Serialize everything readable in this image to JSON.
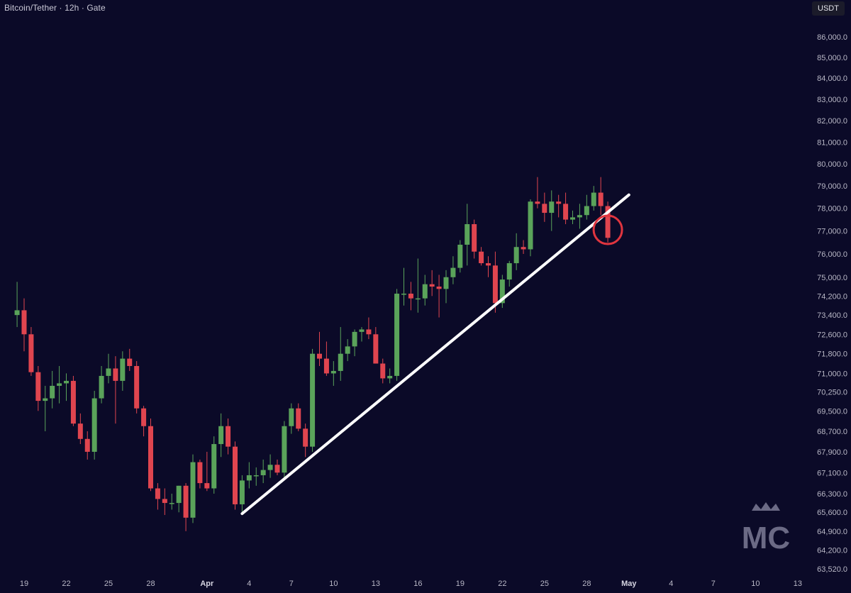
{
  "header": {
    "title": "Bitcoin/Tether · 12h · Gate",
    "currency": "USDT"
  },
  "colors": {
    "background": "#0b0a28",
    "bull": "#5aa35a",
    "bear": "#e0454f",
    "trendline": "#ffffff",
    "highlight_circle": "#e0353f",
    "axis_text": "#b9b8c6"
  },
  "watermark": {
    "text": "MC",
    "icon": "crown-logo-icon"
  },
  "chart_data": {
    "type": "candlestick",
    "interval": "12h",
    "y_scale": "log",
    "ylim": [
      63200,
      87200
    ],
    "y_ticks": [
      "86,000.0",
      "85,000.0",
      "84,000.0",
      "83,000.0",
      "82,000.0",
      "81,000.0",
      "80,000.0",
      "79,000.0",
      "78,000.0",
      "77,000.0",
      "76,000.0",
      "75,000.0",
      "74,200.0",
      "73,400.0",
      "72,600.0",
      "71,800.0",
      "71,000.0",
      "70,250.0",
      "69,500.0",
      "68,700.0",
      "67,900.0",
      "67,100.0",
      "66,300.0",
      "65,600.0",
      "64,900.0",
      "64,200.0",
      "63,520.0"
    ],
    "x_ticks": [
      "19",
      "22",
      "25",
      "28",
      "Apr",
      "4",
      "7",
      "10",
      "13",
      "16",
      "19",
      "22",
      "25",
      "28",
      "May",
      "4",
      "7",
      "10",
      "13"
    ],
    "x_tick_dates": [
      "2024-03-19",
      "2024-03-22",
      "2024-03-25",
      "2024-03-28",
      "2024-04-01",
      "2024-04-04",
      "2024-04-07",
      "2024-04-10",
      "2024-04-13",
      "2024-04-16",
      "2024-04-19",
      "2024-04-22",
      "2024-04-25",
      "2024-04-28",
      "2024-05-01",
      "2024-05-04",
      "2024-05-07",
      "2024-05-10",
      "2024-05-13"
    ],
    "candles": [
      {
        "t": "2024-03-18 12:00",
        "o": 73400,
        "h": 74800,
        "l": 72900,
        "c": 73600
      },
      {
        "t": "2024-03-19 00:00",
        "o": 73600,
        "h": 74100,
        "l": 71900,
        "c": 72600
      },
      {
        "t": "2024-03-19 12:00",
        "o": 72600,
        "h": 72900,
        "l": 70900,
        "c": 71050
      },
      {
        "t": "2024-03-20 00:00",
        "o": 71050,
        "h": 71300,
        "l": 69500,
        "c": 69900
      },
      {
        "t": "2024-03-20 12:00",
        "o": 69900,
        "h": 70500,
        "l": 68700,
        "c": 70000
      },
      {
        "t": "2024-03-21 00:00",
        "o": 70000,
        "h": 71100,
        "l": 69600,
        "c": 70500
      },
      {
        "t": "2024-03-21 12:00",
        "o": 70500,
        "h": 71300,
        "l": 69800,
        "c": 70600
      },
      {
        "t": "2024-03-22 00:00",
        "o": 70600,
        "h": 71000,
        "l": 69900,
        "c": 70700
      },
      {
        "t": "2024-03-22 12:00",
        "o": 70700,
        "h": 70900,
        "l": 68900,
        "c": 69000
      },
      {
        "t": "2024-03-23 00:00",
        "o": 69000,
        "h": 69400,
        "l": 68200,
        "c": 68400
      },
      {
        "t": "2024-03-23 12:00",
        "o": 68400,
        "h": 68700,
        "l": 67600,
        "c": 67900
      },
      {
        "t": "2024-03-24 00:00",
        "o": 67900,
        "h": 70300,
        "l": 67600,
        "c": 70000
      },
      {
        "t": "2024-03-24 12:00",
        "o": 70000,
        "h": 71300,
        "l": 69800,
        "c": 70900
      },
      {
        "t": "2024-03-25 00:00",
        "o": 70900,
        "h": 71800,
        "l": 70600,
        "c": 71200
      },
      {
        "t": "2024-03-25 12:00",
        "o": 71200,
        "h": 71700,
        "l": 69000,
        "c": 70700
      },
      {
        "t": "2024-03-26 00:00",
        "o": 70700,
        "h": 71900,
        "l": 70300,
        "c": 71600
      },
      {
        "t": "2024-03-26 12:00",
        "o": 71600,
        "h": 72000,
        "l": 71100,
        "c": 71300
      },
      {
        "t": "2024-03-27 00:00",
        "o": 71300,
        "h": 71500,
        "l": 69400,
        "c": 69600
      },
      {
        "t": "2024-03-27 12:00",
        "o": 69600,
        "h": 69700,
        "l": 68500,
        "c": 68900
      },
      {
        "t": "2024-03-28 00:00",
        "o": 68900,
        "h": 69200,
        "l": 66400,
        "c": 66500
      },
      {
        "t": "2024-03-28 12:00",
        "o": 66500,
        "h": 66700,
        "l": 65700,
        "c": 66100
      },
      {
        "t": "2024-03-29 00:00",
        "o": 66100,
        "h": 66500,
        "l": 65500,
        "c": 65950
      },
      {
        "t": "2024-03-29 12:00",
        "o": 65950,
        "h": 66300,
        "l": 65700,
        "c": 65950
      },
      {
        "t": "2024-03-30 00:00",
        "o": 65950,
        "h": 66600,
        "l": 65600,
        "c": 66600
      },
      {
        "t": "2024-03-30 12:00",
        "o": 66600,
        "h": 66700,
        "l": 64900,
        "c": 65400
      },
      {
        "t": "2024-03-31 00:00",
        "o": 65400,
        "h": 67800,
        "l": 65200,
        "c": 67500
      },
      {
        "t": "2024-03-31 12:00",
        "o": 67500,
        "h": 67600,
        "l": 66500,
        "c": 66700
      },
      {
        "t": "2024-04-01 00:00",
        "o": 66700,
        "h": 67900,
        "l": 66400,
        "c": 66500
      },
      {
        "t": "2024-04-01 12:00",
        "o": 66500,
        "h": 68500,
        "l": 66300,
        "c": 68200
      },
      {
        "t": "2024-04-02 00:00",
        "o": 68200,
        "h": 69400,
        "l": 67700,
        "c": 68900
      },
      {
        "t": "2024-04-02 12:00",
        "o": 68900,
        "h": 69200,
        "l": 67800,
        "c": 68100
      },
      {
        "t": "2024-04-03 00:00",
        "o": 68100,
        "h": 68300,
        "l": 65700,
        "c": 65900
      },
      {
        "t": "2024-04-03 12:00",
        "o": 65900,
        "h": 67000,
        "l": 65500,
        "c": 66800
      },
      {
        "t": "2024-04-04 00:00",
        "o": 66800,
        "h": 67500,
        "l": 66500,
        "c": 67000
      },
      {
        "t": "2024-04-04 12:00",
        "o": 67000,
        "h": 67300,
        "l": 66600,
        "c": 67000
      },
      {
        "t": "2024-04-05 00:00",
        "o": 67000,
        "h": 67600,
        "l": 66700,
        "c": 67200
      },
      {
        "t": "2024-04-05 12:00",
        "o": 67200,
        "h": 67800,
        "l": 66900,
        "c": 67400
      },
      {
        "t": "2024-04-06 00:00",
        "o": 67400,
        "h": 67600,
        "l": 67000,
        "c": 67100
      },
      {
        "t": "2024-04-06 12:00",
        "o": 67100,
        "h": 69100,
        "l": 66900,
        "c": 68900
      },
      {
        "t": "2024-04-07 00:00",
        "o": 68900,
        "h": 69800,
        "l": 68600,
        "c": 69600
      },
      {
        "t": "2024-04-07 12:00",
        "o": 69600,
        "h": 69800,
        "l": 68700,
        "c": 68800
      },
      {
        "t": "2024-04-08 00:00",
        "o": 68800,
        "h": 69000,
        "l": 67700,
        "c": 68100
      },
      {
        "t": "2024-04-08 12:00",
        "o": 68100,
        "h": 72000,
        "l": 67900,
        "c": 71800
      },
      {
        "t": "2024-04-09 00:00",
        "o": 71800,
        "h": 72700,
        "l": 71300,
        "c": 71600
      },
      {
        "t": "2024-04-09 12:00",
        "o": 71600,
        "h": 72300,
        "l": 70900,
        "c": 71000
      },
      {
        "t": "2024-04-10 00:00",
        "o": 71000,
        "h": 71500,
        "l": 70500,
        "c": 71100
      },
      {
        "t": "2024-04-10 12:00",
        "o": 71100,
        "h": 72900,
        "l": 70700,
        "c": 71800
      },
      {
        "t": "2024-04-11 00:00",
        "o": 71800,
        "h": 72400,
        "l": 71500,
        "c": 72100
      },
      {
        "t": "2024-04-11 12:00",
        "o": 72100,
        "h": 72800,
        "l": 71700,
        "c": 72700
      },
      {
        "t": "2024-04-12 00:00",
        "o": 72700,
        "h": 72900,
        "l": 72300,
        "c": 72800
      },
      {
        "t": "2024-04-12 12:00",
        "o": 72800,
        "h": 73300,
        "l": 72400,
        "c": 72600
      },
      {
        "t": "2024-04-13 00:00",
        "o": 72600,
        "h": 72900,
        "l": 71400,
        "c": 71400
      },
      {
        "t": "2024-04-13 12:00",
        "o": 71400,
        "h": 71600,
        "l": 70600,
        "c": 70800
      },
      {
        "t": "2024-04-14 00:00",
        "o": 70800,
        "h": 71200,
        "l": 70600,
        "c": 70900
      },
      {
        "t": "2024-04-14 12:00",
        "o": 70900,
        "h": 74500,
        "l": 70700,
        "c": 74300
      },
      {
        "t": "2024-04-15 00:00",
        "o": 74300,
        "h": 75400,
        "l": 73800,
        "c": 74300
      },
      {
        "t": "2024-04-15 12:00",
        "o": 74300,
        "h": 74800,
        "l": 73600,
        "c": 74100
      },
      {
        "t": "2024-04-16 00:00",
        "o": 74100,
        "h": 75800,
        "l": 73500,
        "c": 74100
      },
      {
        "t": "2024-04-16 12:00",
        "o": 74100,
        "h": 75100,
        "l": 73800,
        "c": 74700
      },
      {
        "t": "2024-04-17 00:00",
        "o": 74700,
        "h": 75300,
        "l": 74200,
        "c": 74600
      },
      {
        "t": "2024-04-17 12:00",
        "o": 74600,
        "h": 75100,
        "l": 73300,
        "c": 74500
      },
      {
        "t": "2024-04-18 00:00",
        "o": 74500,
        "h": 75300,
        "l": 73900,
        "c": 75000
      },
      {
        "t": "2024-04-18 12:00",
        "o": 75000,
        "h": 75900,
        "l": 74700,
        "c": 75400
      },
      {
        "t": "2024-04-19 00:00",
        "o": 75400,
        "h": 76600,
        "l": 75200,
        "c": 76400
      },
      {
        "t": "2024-04-19 12:00",
        "o": 76400,
        "h": 78200,
        "l": 75500,
        "c": 77300
      },
      {
        "t": "2024-04-20 00:00",
        "o": 77300,
        "h": 77500,
        "l": 75800,
        "c": 76100
      },
      {
        "t": "2024-04-20 12:00",
        "o": 76100,
        "h": 76300,
        "l": 75500,
        "c": 75600
      },
      {
        "t": "2024-04-21 00:00",
        "o": 75600,
        "h": 75900,
        "l": 75000,
        "c": 75500
      },
      {
        "t": "2024-04-21 12:00",
        "o": 75500,
        "h": 76100,
        "l": 73500,
        "c": 73900
      },
      {
        "t": "2024-04-22 00:00",
        "o": 73900,
        "h": 75100,
        "l": 73700,
        "c": 74900
      },
      {
        "t": "2024-04-22 12:00",
        "o": 74900,
        "h": 75700,
        "l": 74600,
        "c": 75600
      },
      {
        "t": "2024-04-23 00:00",
        "o": 75600,
        "h": 76900,
        "l": 75300,
        "c": 76300
      },
      {
        "t": "2024-04-23 12:00",
        "o": 76300,
        "h": 76600,
        "l": 76000,
        "c": 76200
      },
      {
        "t": "2024-04-24 00:00",
        "o": 76200,
        "h": 78400,
        "l": 75900,
        "c": 78300
      },
      {
        "t": "2024-04-24 12:00",
        "o": 78300,
        "h": 79400,
        "l": 78000,
        "c": 78200
      },
      {
        "t": "2024-04-25 00:00",
        "o": 78200,
        "h": 78700,
        "l": 77400,
        "c": 77800
      },
      {
        "t": "2024-04-25 12:00",
        "o": 77800,
        "h": 78800,
        "l": 77000,
        "c": 78300
      },
      {
        "t": "2024-04-26 00:00",
        "o": 78300,
        "h": 78600,
        "l": 77600,
        "c": 78200
      },
      {
        "t": "2024-04-26 12:00",
        "o": 78200,
        "h": 78700,
        "l": 77300,
        "c": 77500
      },
      {
        "t": "2024-04-27 00:00",
        "o": 77500,
        "h": 77900,
        "l": 77300,
        "c": 77600
      },
      {
        "t": "2024-04-27 12:00",
        "o": 77600,
        "h": 78200,
        "l": 77100,
        "c": 77700
      },
      {
        "t": "2024-04-28 00:00",
        "o": 77700,
        "h": 78600,
        "l": 77500,
        "c": 78100
      },
      {
        "t": "2024-04-28 12:00",
        "o": 78100,
        "h": 79000,
        "l": 77900,
        "c": 78700
      },
      {
        "t": "2024-04-29 00:00",
        "o": 78700,
        "h": 79400,
        "l": 77700,
        "c": 78100
      },
      {
        "t": "2024-04-29 12:00",
        "o": 78100,
        "h": 78300,
        "l": 76500,
        "c": 76700
      }
    ],
    "trendline": {
      "start": {
        "t": "2024-04-03 12:00",
        "price": 65550
      },
      "end": {
        "t": "2024-05-01 00:00",
        "price": 78600
      }
    },
    "highlight": {
      "t": "2024-04-29 12:00",
      "price": 77050
    }
  }
}
